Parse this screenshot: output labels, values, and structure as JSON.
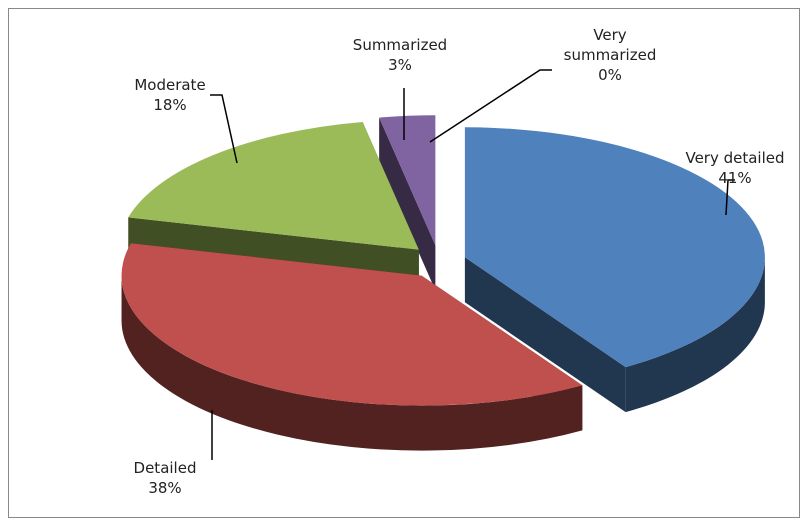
{
  "chart_data": {
    "type": "pie",
    "categories": [
      "Very detailed",
      "Detailed",
      "Moderate",
      "Summarized",
      "Very summarized"
    ],
    "values": [
      41,
      38,
      18,
      3,
      0
    ],
    "value_labels": [
      "41%",
      "38%",
      "18%",
      "3%",
      "0%"
    ],
    "colors": [
      "#4f81bd",
      "#c0504d",
      "#9bbb59",
      "#8064a2",
      "#4bacc6"
    ]
  }
}
